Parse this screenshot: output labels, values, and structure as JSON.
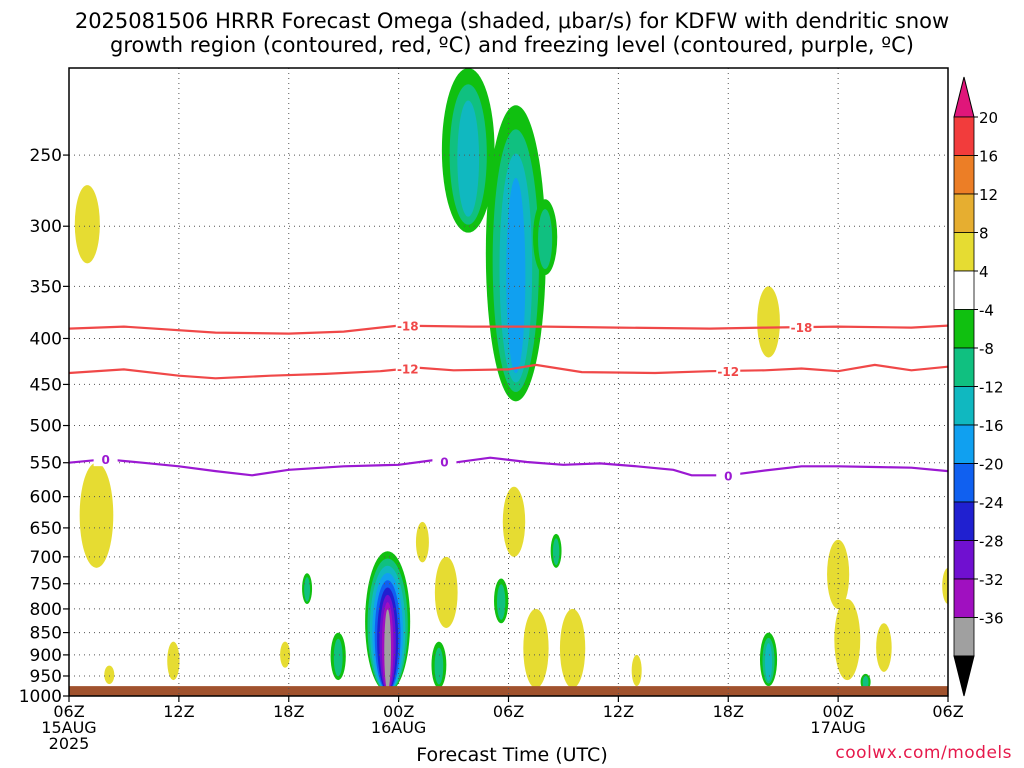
{
  "title_line1": "2025081506 HRRR Forecast Omega (shaded, μbar/s) for KDFW with dendritic snow",
  "title_line2": "growth region (contoured, red, ºC) and freezing level (contoured, purple, ºC)",
  "credit": "coolwx.com/models",
  "chart_data": {
    "type": "heatmap",
    "xlabel": "Forecast Time (UTC)",
    "ylabel": "",
    "x_tick_labels": [
      {
        "lines": [
          "06Z",
          "15AUG",
          "2025"
        ],
        "hour": 0
      },
      {
        "lines": [
          "12Z"
        ],
        "hour": 6
      },
      {
        "lines": [
          "18Z"
        ],
        "hour": 12
      },
      {
        "lines": [
          "00Z",
          "16AUG"
        ],
        "hour": 18
      },
      {
        "lines": [
          "06Z"
        ],
        "hour": 24
      },
      {
        "lines": [
          "12Z"
        ],
        "hour": 30
      },
      {
        "lines": [
          "18Z"
        ],
        "hour": 36
      },
      {
        "lines": [
          "00Z",
          "17AUG"
        ],
        "hour": 42
      },
      {
        "lines": [
          "06Z"
        ],
        "hour": 48
      }
    ],
    "xlim": [
      0,
      48
    ],
    "y_scale": "log-pressure (hPa), inverted",
    "ylim": [
      1000,
      200
    ],
    "y_ticks": [
      250,
      300,
      350,
      400,
      450,
      500,
      550,
      600,
      650,
      700,
      750,
      800,
      850,
      900,
      950,
      1000
    ],
    "grid": true,
    "colorbar": {
      "units": "μbar/s",
      "tick_labels": [
        "20",
        "16",
        "12",
        "8",
        "4",
        "-4",
        "-8",
        "-12",
        "-16",
        "-20",
        "-24",
        "-28",
        "-32",
        "-36"
      ],
      "colors": [
        "#f23c3c",
        "#ec7e26",
        "#e6ae30",
        "#e6dc32",
        "#ffffff",
        "#10c010",
        "#10c080",
        "#10b8c0",
        "#10a0f0",
        "#1060f0",
        "#2020d0",
        "#7010d0",
        "#a010c0",
        "#a0a0a0"
      ],
      "top_arrow_color": "#e0167a",
      "bottom_arrow_color": "#000000"
    },
    "contours": [
      {
        "name": "dendritic snow growth region",
        "color": "#f04848",
        "labels": [
          "-18"
        ],
        "points": [
          [
            0,
            390
          ],
          [
            3,
            388
          ],
          [
            8,
            394
          ],
          [
            12,
            395
          ],
          [
            15,
            393
          ],
          [
            18,
            387
          ],
          [
            22,
            388
          ],
          [
            26,
            388
          ],
          [
            30,
            389
          ],
          [
            35,
            390
          ],
          [
            38,
            389
          ],
          [
            42,
            388
          ],
          [
            46,
            389
          ],
          [
            48,
            387
          ]
        ]
      },
      {
        "name": "dendritic snow growth region",
        "color": "#f04848",
        "labels": [
          "-12"
        ],
        "points": [
          [
            0,
            437
          ],
          [
            3,
            433
          ],
          [
            6,
            440
          ],
          [
            8,
            443
          ],
          [
            11,
            440
          ],
          [
            14,
            438
          ],
          [
            17,
            435
          ],
          [
            19,
            431
          ],
          [
            21,
            434
          ],
          [
            24,
            433
          ],
          [
            25.5,
            428
          ],
          [
            28,
            436
          ],
          [
            32,
            437
          ],
          [
            35,
            435
          ],
          [
            38,
            434
          ],
          [
            40,
            432
          ],
          [
            42,
            435
          ],
          [
            44,
            428
          ],
          [
            46,
            434
          ],
          [
            48,
            430
          ]
        ]
      },
      {
        "name": "freezing level",
        "color": "#9b19d2",
        "labels": [
          "0"
        ],
        "points": [
          [
            0,
            550
          ],
          [
            2,
            545
          ],
          [
            4,
            550
          ],
          [
            6,
            555
          ],
          [
            8,
            562
          ],
          [
            10,
            568
          ],
          [
            12,
            560
          ],
          [
            15,
            555
          ],
          [
            18,
            553
          ],
          [
            20,
            546
          ],
          [
            21,
            550
          ],
          [
            23,
            543
          ],
          [
            25,
            549
          ],
          [
            27,
            553
          ],
          [
            29,
            551
          ],
          [
            31,
            555
          ],
          [
            33,
            560
          ],
          [
            34,
            568
          ],
          [
            36,
            568
          ],
          [
            38,
            561
          ],
          [
            40,
            555
          ],
          [
            42,
            555
          ],
          [
            44,
            556
          ],
          [
            46,
            557
          ],
          [
            48,
            562
          ]
        ]
      }
    ],
    "shaded_features": [
      {
        "hour": 1,
        "p_top": 270,
        "p_bot": 330,
        "level": "4"
      },
      {
        "hour": 1.5,
        "p_top": 550,
        "p_bot": 720,
        "level": "4"
      },
      {
        "hour": 2.2,
        "p_top": 925,
        "p_bot": 970,
        "level": "4"
      },
      {
        "hour": 5.7,
        "p_top": 870,
        "p_bot": 960,
        "level": "4"
      },
      {
        "hour": 11.8,
        "p_top": 870,
        "p_bot": 930,
        "level": "4"
      },
      {
        "hour": 13,
        "p_top": 730,
        "p_bot": 790,
        "level": "-8"
      },
      {
        "hour": 14.7,
        "p_top": 850,
        "p_bot": 960,
        "level": "-8"
      },
      {
        "hour": 17.4,
        "p_top": 690,
        "p_bot": 990,
        "level": "-36"
      },
      {
        "hour": 19.3,
        "p_top": 640,
        "p_bot": 710,
        "level": "4"
      },
      {
        "hour": 20.6,
        "p_top": 700,
        "p_bot": 840,
        "level": "8"
      },
      {
        "hour": 20.2,
        "p_top": 870,
        "p_bot": 980,
        "level": "-8"
      },
      {
        "hour": 21.8,
        "p_top": 200,
        "p_bot": 305,
        "level": "-12"
      },
      {
        "hour": 23.6,
        "p_top": 740,
        "p_bot": 830,
        "level": "-8"
      },
      {
        "hour": 24.4,
        "p_top": 220,
        "p_bot": 470,
        "level": "-16"
      },
      {
        "hour": 24.3,
        "p_top": 585,
        "p_bot": 700,
        "level": "4"
      },
      {
        "hour": 26.0,
        "p_top": 280,
        "p_bot": 340,
        "level": "-8"
      },
      {
        "hour": 26.6,
        "p_top": 660,
        "p_bot": 720,
        "level": "-8"
      },
      {
        "hour": 25.5,
        "p_top": 800,
        "p_bot": 980,
        "level": "4"
      },
      {
        "hour": 27.5,
        "p_top": 800,
        "p_bot": 980,
        "level": "8"
      },
      {
        "hour": 31.0,
        "p_top": 900,
        "p_bot": 975,
        "level": "4"
      },
      {
        "hour": 38.2,
        "p_top": 850,
        "p_bot": 975,
        "level": "-12"
      },
      {
        "hour": 38.2,
        "p_top": 350,
        "p_bot": 420,
        "level": "4"
      },
      {
        "hour": 42,
        "p_top": 670,
        "p_bot": 800,
        "level": "4"
      },
      {
        "hour": 42.5,
        "p_top": 780,
        "p_bot": 960,
        "level": "8"
      },
      {
        "hour": 43.5,
        "p_top": 945,
        "p_bot": 985,
        "level": "-8"
      },
      {
        "hour": 44.5,
        "p_top": 830,
        "p_bot": 940,
        "level": "4"
      },
      {
        "hour": 48,
        "p_top": 720,
        "p_bot": 790,
        "level": "4"
      }
    ],
    "surface_below_pressure": 975
  }
}
